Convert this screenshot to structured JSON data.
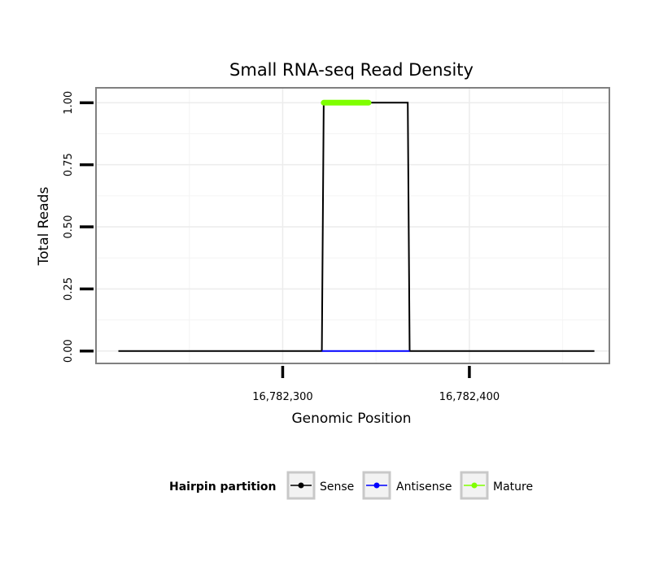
{
  "chart_data": {
    "type": "line",
    "title": "Small RNA-seq Read Density",
    "xlabel": "Genomic Position",
    "ylabel": "Total Reads",
    "xlim": [
      16782200,
      16782475
    ],
    "ylim": [
      -0.05,
      1.06
    ],
    "xticks": [
      16782300,
      16782400
    ],
    "xtick_labels": [
      "16,782,300",
      "16,782,400"
    ],
    "yticks": [
      0,
      0.25,
      0.5,
      0.75,
      1.0
    ],
    "ytick_labels": [
      "0.00",
      "0.25",
      "0.50",
      "0.75",
      "1.00"
    ],
    "grid": true,
    "legend": {
      "title": "Hairpin partition",
      "position": "bottom",
      "entries": [
        "Sense",
        "Antisense",
        "Mature"
      ]
    },
    "series": [
      {
        "name": "Sense",
        "color": "#000000",
        "x": [
          16782212,
          16782321,
          16782322,
          16782367,
          16782368,
          16782467
        ],
        "y": [
          0,
          0,
          1,
          1,
          0,
          0
        ]
      },
      {
        "name": "Antisense",
        "color": "#0000ff",
        "x": [
          16782321,
          16782368
        ],
        "y": [
          0,
          0
        ]
      },
      {
        "name": "Mature",
        "color": "#7fff00",
        "x": [
          16782322,
          16782346
        ],
        "y": [
          1,
          1
        ]
      }
    ]
  }
}
